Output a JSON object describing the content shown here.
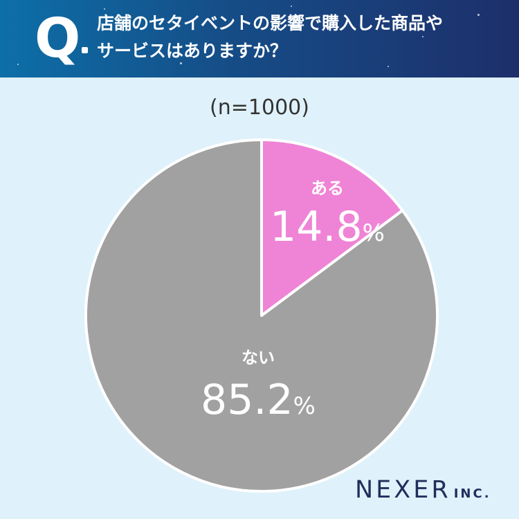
{
  "question": {
    "mark": "Q",
    "text_line1": "店舗のセタイベントの影響で購入した商品や",
    "text_line2": "サービスはありますか？"
  },
  "sample_label": "(n=1000)",
  "logo": {
    "main": "NEXER",
    "suffix": "INC."
  },
  "colors": {
    "header_start": "#0d6fa8",
    "header_end": "#1d2f6b",
    "background": "#dff1fa"
  },
  "chart_data": {
    "type": "pie",
    "unit": "%",
    "slices": [
      {
        "label": "ある",
        "value": 14.8,
        "display": "14.8",
        "color": "#ef84d6"
      },
      {
        "label": "ない",
        "value": 85.2,
        "display": "85.2",
        "color": "#a1a1a1"
      }
    ]
  }
}
